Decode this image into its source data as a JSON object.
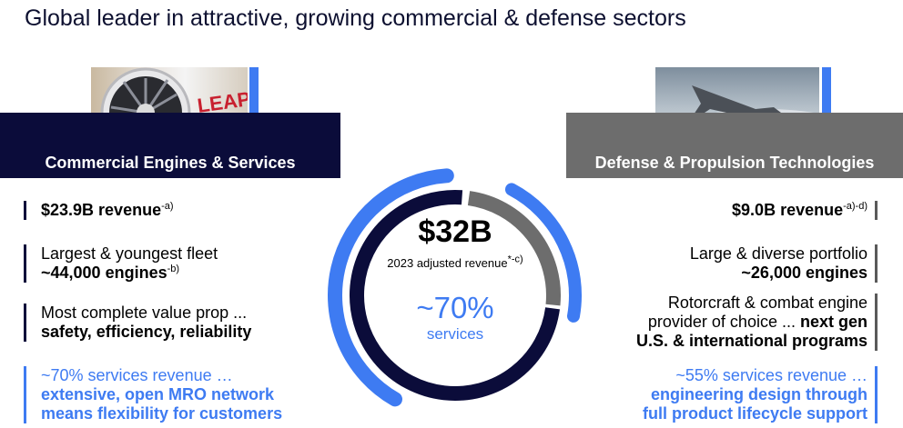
{
  "title": "Global leader in attractive, growing commercial & defense sectors",
  "left": {
    "header": "Commercial Engines & Services",
    "bullets": [
      {
        "line1": "$23.9B revenue",
        "sup": "-a)"
      },
      {
        "line1": "Largest & youngest fleet",
        "line2": "~44,000 engines",
        "sup": "-b)"
      },
      {
        "line1": "Most complete value prop ...",
        "line2": "safety, efficiency, reliability"
      },
      {
        "line1": "~70% services revenue …",
        "line2": "extensive, open MRO network",
        "line3": "means flexibility for customers"
      }
    ]
  },
  "right": {
    "header": "Defense & Propulsion Technologies",
    "bullets": [
      {
        "line1": "$9.0B revenue",
        "sup": "-a)-d)"
      },
      {
        "line1": "Large & diverse portfolio",
        "line2": "~26,000 engines"
      },
      {
        "line1": "Rotorcraft & combat engine",
        "line2a": "provider of choice ... ",
        "line2b": "next gen",
        "line3": "U.S. & international programs"
      },
      {
        "line1": "~55% services revenue …",
        "line2": "engineering design through",
        "line3": "full product lifecycle support"
      }
    ]
  },
  "center": {
    "value": "$32B",
    "subtitle": "2023 adjusted revenue",
    "subtitle_sup": "*-c)",
    "services_pct": "~70%",
    "services_label": "services",
    "commercial_share": 0.74,
    "defense_share": 0.26
  },
  "photos": {
    "left_engine_text": "LEAP"
  },
  "colors": {
    "navy": "#0b0c3a",
    "gray": "#6d6d6d",
    "blue": "#3e7bf2"
  }
}
